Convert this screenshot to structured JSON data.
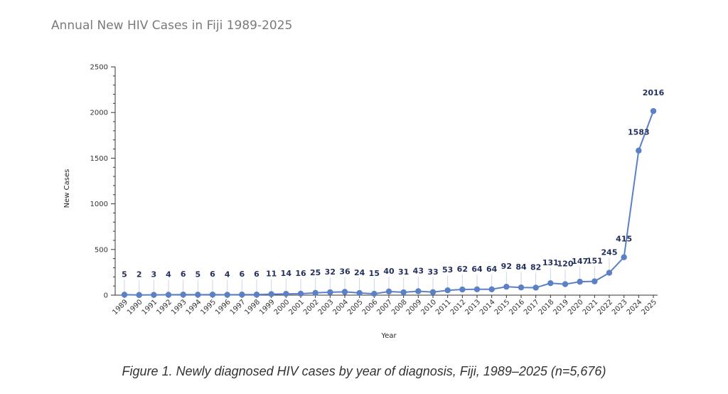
{
  "title": "Annual New HIV Cases in Fiji 1989-2025",
  "caption": "Figure 1. Newly diagnosed HIV cases by year of diagnosis, Fiji, 1989–2025 (n=5,676)",
  "colors": {
    "line": "#5b80c5",
    "label": "#24305e",
    "axis": "#333333",
    "guide": "#cfd6e6"
  },
  "chart_data": {
    "type": "line",
    "title": "Annual New HIV Cases in Fiji 1989-2025",
    "xlabel": "Year",
    "ylabel": "New Cases",
    "ylim": [
      0,
      2500
    ],
    "yticks": [
      0,
      500,
      1000,
      1500,
      2000,
      2500
    ],
    "grid": false,
    "categories": [
      "1989",
      "1990",
      "1991",
      "1992",
      "1993",
      "1994",
      "1995",
      "1996",
      "1997",
      "1998",
      "1999",
      "2000",
      "2001",
      "2002",
      "2003",
      "2004",
      "2005",
      "2006",
      "2007",
      "2008",
      "2009",
      "2010",
      "2011",
      "2012",
      "2013",
      "2014",
      "2015",
      "2016",
      "2017",
      "2018",
      "2019",
      "2020",
      "2021",
      "2022",
      "2023",
      "2024",
      "2025"
    ],
    "values": [
      5,
      2,
      3,
      4,
      6,
      5,
      6,
      4,
      6,
      6,
      11,
      14,
      16,
      25,
      32,
      36,
      24,
      15,
      40,
      31,
      43,
      33,
      53,
      62,
      64,
      64,
      92,
      84,
      82,
      131,
      120,
      147,
      151,
      245,
      415,
      1583,
      2016
    ],
    "labels": [
      "5",
      "2",
      "3",
      "4",
      "6",
      "5",
      "6",
      "4",
      "6",
      "6",
      "11",
      "14",
      "16",
      "25",
      "32",
      "36",
      "24",
      "15",
      "40",
      "31",
      "43",
      "33",
      "53",
      "62",
      "64",
      "64",
      "92",
      "84",
      "82",
      "131",
      "120",
      "147",
      "151",
      "245",
      "415",
      "1583",
      "2016"
    ]
  }
}
